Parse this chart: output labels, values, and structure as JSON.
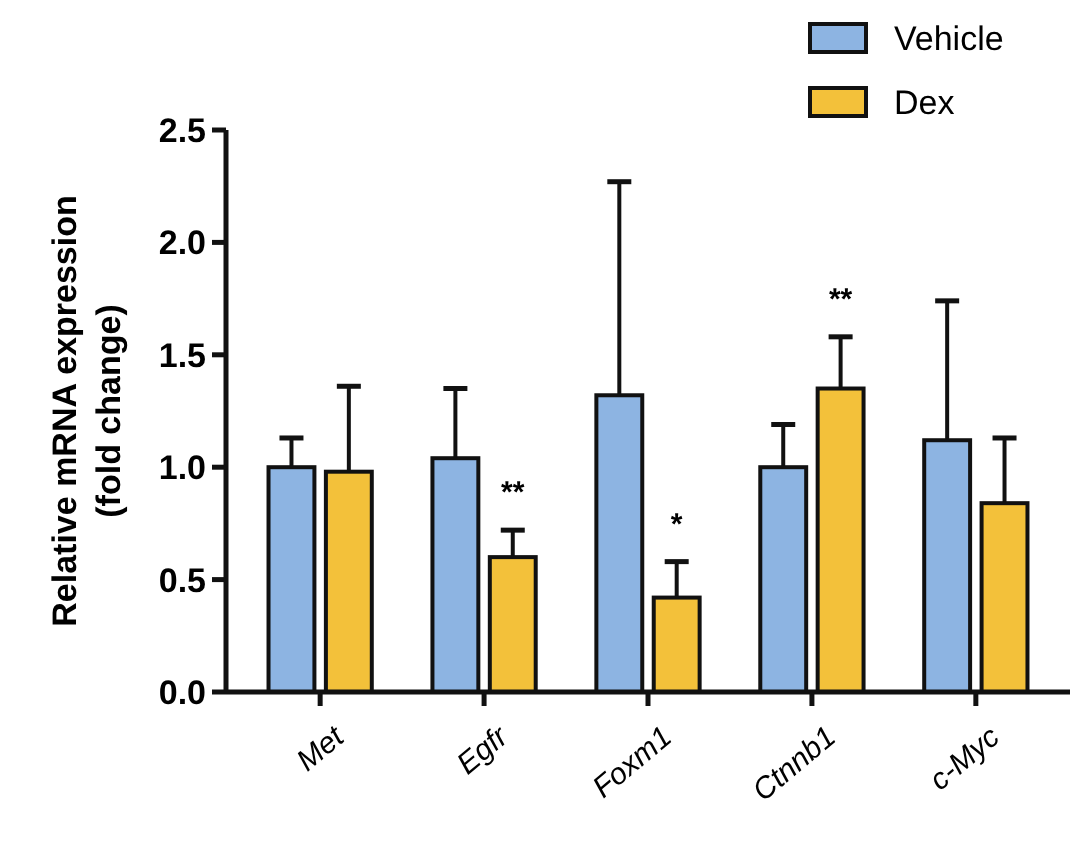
{
  "chart_data": {
    "type": "bar",
    "ylabel": "Relative mRNA expression\n(fold change)",
    "categories": [
      "Met",
      "Egfr",
      "Foxm1",
      "Ctnnb1",
      "c-Myc"
    ],
    "series": [
      {
        "name": "Vehicle",
        "color": "#8db4e2",
        "values": [
          1.0,
          1.04,
          1.32,
          1.0,
          1.12
        ],
        "errors": [
          [
            1.0,
            1.13
          ],
          [
            1.04,
            1.35
          ],
          [
            1.32,
            2.27
          ],
          [
            1.0,
            1.19
          ],
          [
            1.12,
            1.74
          ]
        ]
      },
      {
        "name": "Dex",
        "color": "#f3c13a",
        "values": [
          0.98,
          0.6,
          0.42,
          1.35,
          0.84
        ],
        "errors": [
          [
            0.98,
            1.36
          ],
          [
            0.6,
            0.72
          ],
          [
            0.42,
            0.58
          ],
          [
            1.35,
            1.58
          ],
          [
            0.84,
            1.13
          ]
        ]
      }
    ],
    "ylim": [
      0,
      2.5
    ],
    "yticks": [
      {
        "value": 0,
        "label": "0.0"
      },
      {
        "value": 0.5,
        "label": "0.5"
      },
      {
        "value": 1,
        "label": "1.0"
      },
      {
        "value": 1.5,
        "label": "1.5"
      },
      {
        "value": 2,
        "label": "2.0"
      },
      {
        "value": 2.5,
        "label": "2.5"
      }
    ],
    "grid": false,
    "legend": "top right",
    "annotations": [
      {
        "text": "**",
        "x": "Egfr",
        "y": 0.6
      },
      {
        "text": "*",
        "x": "Foxm1",
        "y": 0.42
      },
      {
        "text": "**",
        "x": "Ctnnb1",
        "y": 1.35
      }
    ]
  }
}
